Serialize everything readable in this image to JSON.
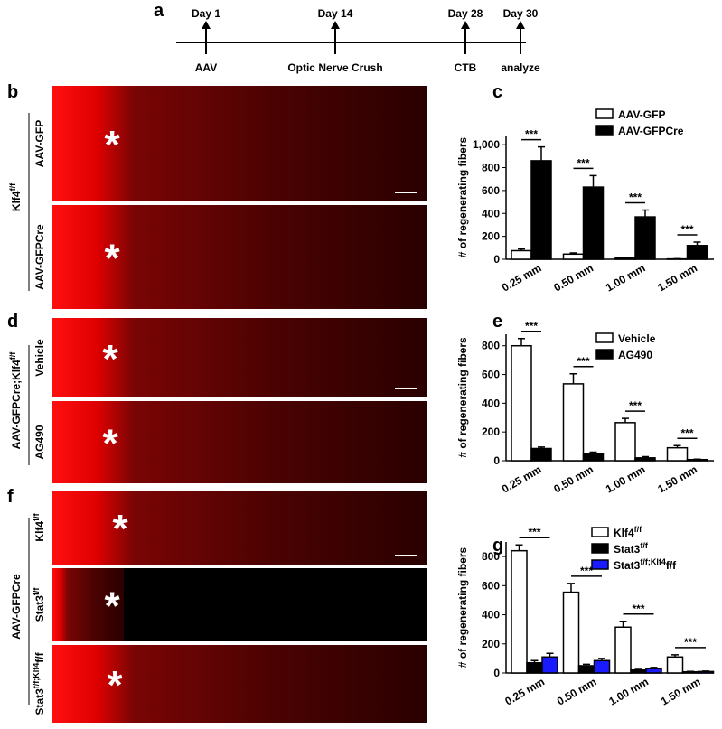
{
  "panel_labels": [
    "a",
    "b",
    "c",
    "d",
    "e",
    "f",
    "g"
  ],
  "timeline": {
    "events": [
      {
        "day": "Day 1",
        "label": "AAV"
      },
      {
        "day": "Day 14",
        "label": "Optic Nerve Crush"
      },
      {
        "day": "Day 28",
        "label": "CTB"
      },
      {
        "day": "Day 30",
        "label": "analyze"
      }
    ]
  },
  "images": {
    "marker": "*",
    "b": {
      "group": [
        "Klf4",
        "f/f"
      ],
      "rows": [
        [
          "AAV-GFP"
        ],
        [
          "AAV-GFPCre"
        ]
      ]
    },
    "d": {
      "group": [
        "AAV-GFPCre;Klf4",
        "f/f"
      ],
      "rows": [
        [
          "Vehicle"
        ],
        [
          "AG490"
        ]
      ]
    },
    "f": {
      "group": [
        "AAV-GFPCre"
      ],
      "rows": [
        [
          "Klf4",
          "f/f"
        ],
        [
          "Stat3",
          "f/f"
        ],
        [
          "Stat3",
          "f/f;Klf4",
          "f/f"
        ]
      ]
    }
  },
  "chart_data": [
    {
      "type": "bar",
      "ylabel": "# of regenerating fibers",
      "categories": [
        "0.25 mm",
        "0.50 mm",
        "1.00 mm",
        "1.50 mm"
      ],
      "significance": [
        "***",
        "***",
        "***",
        "***"
      ],
      "ylim": [
        0,
        1080
      ],
      "yticks": [
        0,
        200,
        400,
        600,
        800,
        {
          "value": 1000,
          "label": "1,000"
        }
      ],
      "series": [
        {
          "name": [
            "AAV-GFP"
          ],
          "color": "#ffffff",
          "values": [
            75,
            45,
            10,
            3
          ],
          "errors": [
            15,
            10,
            5,
            2
          ]
        },
        {
          "name": [
            "AAV-GFPCre"
          ],
          "color": "#000000",
          "values": [
            860,
            630,
            370,
            120
          ],
          "errors": [
            120,
            100,
            60,
            30
          ]
        }
      ]
    },
    {
      "type": "bar",
      "ylabel": "# of regenerating fibers",
      "categories": [
        "0.25 mm",
        "0.50 mm",
        "1.00 mm",
        "1.50 mm"
      ],
      "significance": [
        "***",
        "***",
        "***",
        "***"
      ],
      "ylim": [
        0,
        880
      ],
      "yticks": [
        0,
        200,
        400,
        600,
        800
      ],
      "series": [
        {
          "name": [
            "Vehicle"
          ],
          "color": "#ffffff",
          "values": [
            800,
            535,
            265,
            90
          ],
          "errors": [
            50,
            70,
            30,
            15
          ]
        },
        {
          "name": [
            "AG490"
          ],
          "color": "#000000",
          "values": [
            85,
            50,
            20,
            8
          ],
          "errors": [
            10,
            10,
            8,
            3
          ]
        }
      ]
    },
    {
      "type": "bar",
      "ylabel": "# of regenerating fibers",
      "categories": [
        "0.25 mm",
        "0.50 mm",
        "1.00 mm",
        "1.50 mm"
      ],
      "significance": [
        "***",
        "***",
        "***",
        "***"
      ],
      "ylim": [
        0,
        900
      ],
      "yticks": [
        0,
        200,
        400,
        600,
        800
      ],
      "series": [
        {
          "name": [
            "Klf4",
            "f/f"
          ],
          "color": "#ffffff",
          "values": [
            840,
            555,
            315,
            110
          ],
          "errors": [
            40,
            60,
            40,
            15
          ]
        },
        {
          "name": [
            "Stat3",
            "f/f"
          ],
          "color": "#000000",
          "values": [
            70,
            50,
            20,
            8
          ],
          "errors": [
            15,
            10,
            5,
            3
          ]
        },
        {
          "name": [
            "Stat3",
            "f/f;Klf4",
            "f/f"
          ],
          "color": "#1a1aff",
          "values": [
            110,
            85,
            30,
            10
          ],
          "errors": [
            25,
            15,
            8,
            3
          ]
        }
      ]
    }
  ]
}
